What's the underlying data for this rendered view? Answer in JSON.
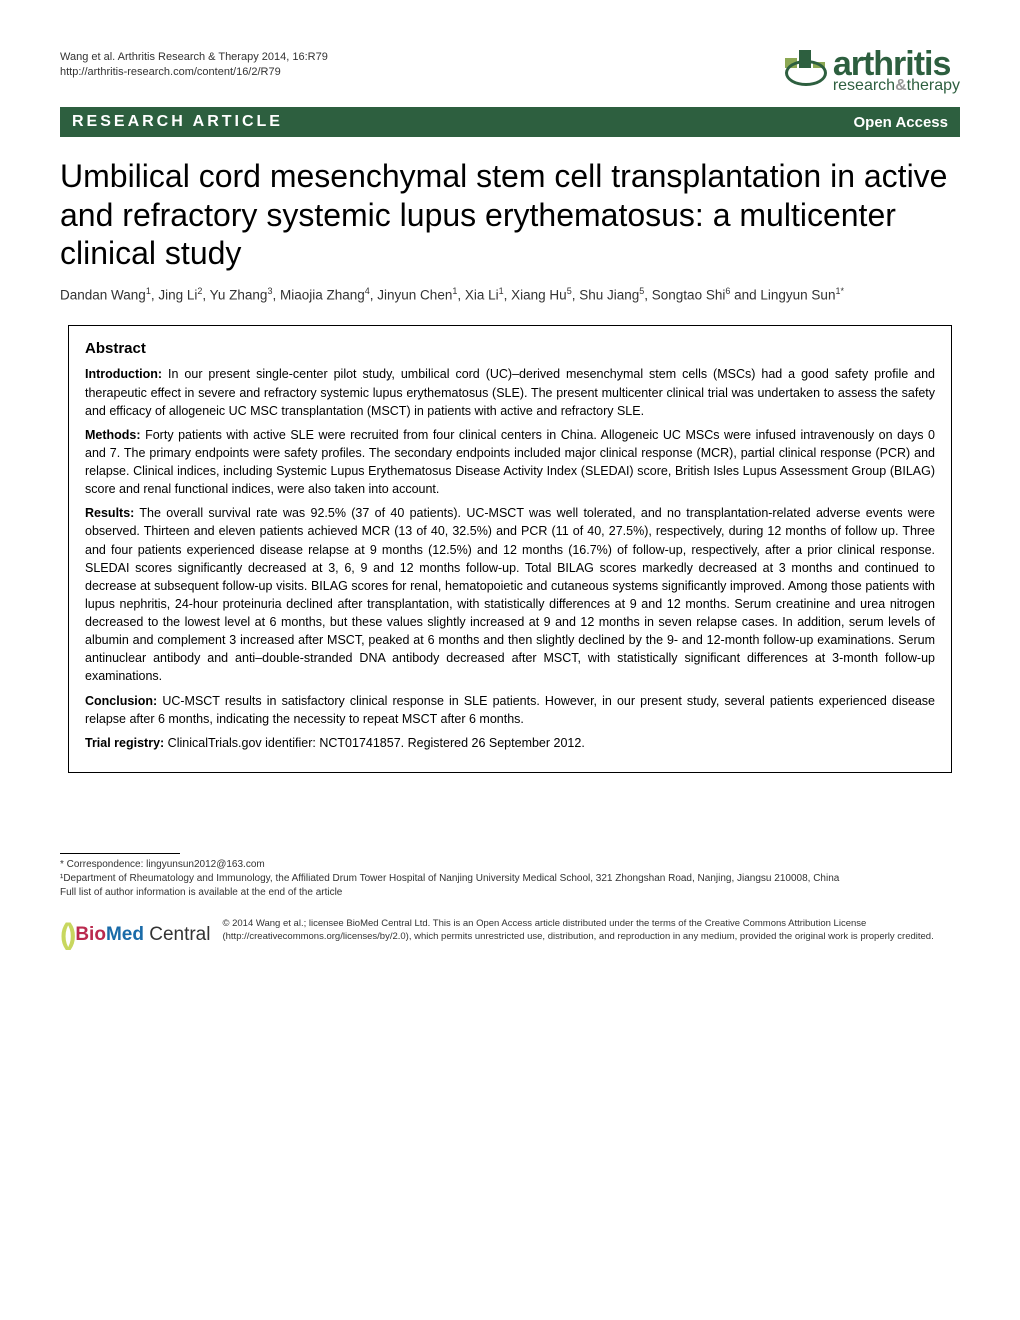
{
  "header": {
    "citation_line1": "Wang et al. Arthritis Research & Therapy 2014, 16:R79",
    "citation_line2": "http://arthritis-research.com/content/16/2/R79",
    "logo_main": "arthritis",
    "logo_sub_research": "research",
    "logo_sub_therapy": "therapy"
  },
  "banner": {
    "article_type": "RESEARCH ARTICLE",
    "access": "Open Access"
  },
  "title": "Umbilical cord mesenchymal stem cell transplantation in active and refractory systemic lupus erythematosus: a multicenter clinical study",
  "authors_html": "Dandan Wang<sup>1</sup>, Jing Li<sup>2</sup>, Yu Zhang<sup>3</sup>, Miaojia Zhang<sup>4</sup>, Jinyun Chen<sup>1</sup>, Xia Li<sup>1</sup>, Xiang Hu<sup>5</sup>, Shu Jiang<sup>5</sup>, Songtao Shi<sup>6</sup> and Lingyun Sun<sup>1*</sup>",
  "abstract": {
    "heading": "Abstract",
    "introduction_label": "Introduction:",
    "introduction": " In our present single-center pilot study, umbilical cord (UC)–derived mesenchymal stem cells (MSCs) had a good safety profile and therapeutic effect in severe and refractory systemic lupus erythematosus (SLE). The present multicenter clinical trial was undertaken to assess the safety and efficacy of allogeneic UC MSC transplantation (MSCT) in patients with active and refractory SLE.",
    "methods_label": "Methods:",
    "methods": " Forty patients with active SLE were recruited from four clinical centers in China. Allogeneic UC MSCs were infused intravenously on days 0 and 7. The primary endpoints were safety profiles. The secondary endpoints included major clinical response (MCR), partial clinical response (PCR) and relapse. Clinical indices, including Systemic Lupus Erythematosus Disease Activity Index (SLEDAI) score, British Isles Lupus Assessment Group (BILAG) score and renal functional indices, were also taken into account.",
    "results_label": "Results:",
    "results": " The overall survival rate was 92.5% (37 of 40 patients). UC-MSCT was well tolerated, and no transplantation-related adverse events were observed. Thirteen and eleven patients achieved MCR (13 of 40, 32.5%) and PCR (11 of 40, 27.5%), respectively, during 12 months of follow up. Three and four patients experienced disease relapse at 9 months (12.5%) and 12 months (16.7%) of follow-up, respectively, after a prior clinical response. SLEDAI scores significantly decreased at 3, 6, 9 and 12 months follow-up. Total BILAG scores markedly decreased at 3 months and continued to decrease at subsequent follow-up visits. BILAG scores for renal, hematopoietic and cutaneous systems significantly improved. Among those patients with lupus nephritis, 24-hour proteinuria declined after transplantation, with statistically differences at 9 and 12 months. Serum creatinine and urea nitrogen decreased to the lowest level at 6 months, but these values slightly increased at 9 and 12 months in seven relapse cases. In addition, serum levels of albumin and complement 3 increased after MSCT, peaked at 6 months and then slightly declined by the 9- and 12-month follow-up examinations. Serum antinuclear antibody and anti–double-stranded DNA antibody decreased after MSCT, with statistically significant differences at 3-month follow-up examinations.",
    "conclusion_label": "Conclusion:",
    "conclusion": " UC-MSCT results in satisfactory clinical response in SLE patients. However, in our present study, several patients experienced disease relapse after 6 months, indicating the necessity to repeat MSCT after 6 months.",
    "trial_label": "Trial registry:",
    "trial": " ClinicalTrials.gov identifier: NCT01741857. Registered 26 September 2012."
  },
  "footer": {
    "correspondence_star": "* Correspondence: lingyunsun2012@163.com",
    "affiliation": "¹Department of Rheumatology and Immunology, the Affiliated Drum Tower Hospital of Nanjing University Medical School, 321 Zhongshan Road, Nanjing, Jiangsu 210008, China",
    "author_info_note": "Full list of author information is available at the end of the article",
    "bmc_bio": "Bio",
    "bmc_med": "Med",
    "bmc_central": " Central",
    "license": "© 2014 Wang et al.; licensee BioMed Central Ltd. This is an Open Access article distributed under the terms of the Creative Commons Attribution License (http://creativecommons.org/licenses/by/2.0), which permits unrestricted use, distribution, and reproduction in any medium, provided the original work is properly credited."
  }
}
